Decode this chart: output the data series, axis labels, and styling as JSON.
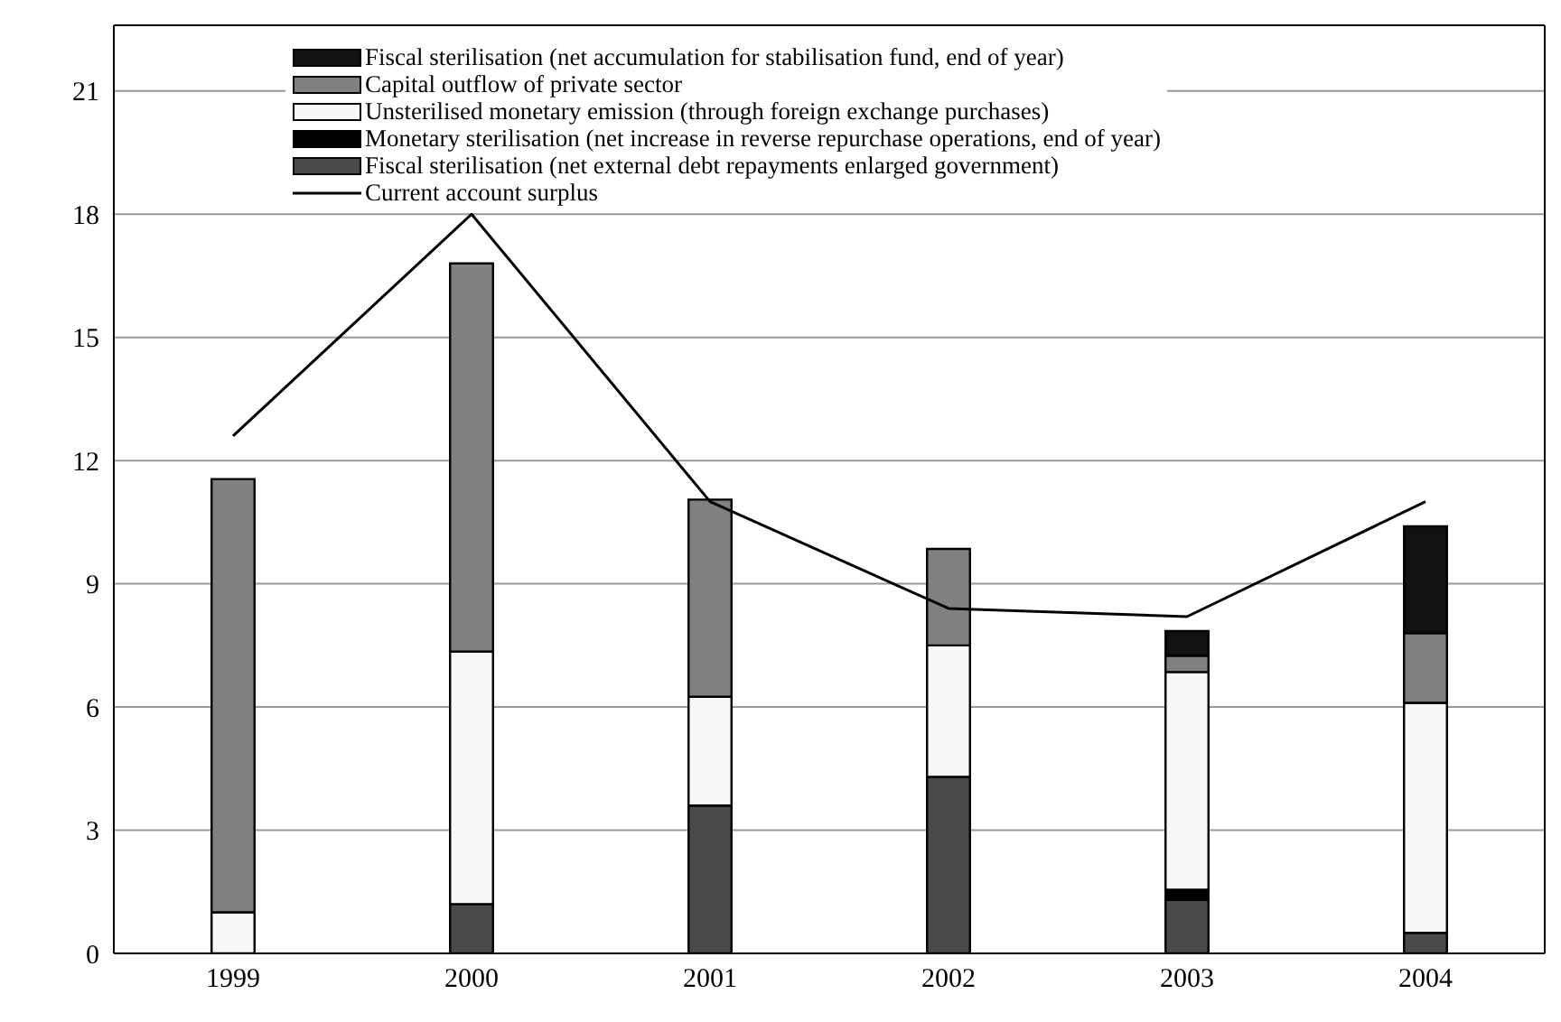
{
  "chart_data": {
    "type": "bar",
    "stacked": true,
    "categories": [
      "1999",
      "2000",
      "2001",
      "2002",
      "2003",
      "2004"
    ],
    "series": [
      {
        "name": "Fiscal sterilisation (net external debt repayments enlarged government)",
        "color": "#4a4a4a",
        "values": [
          null,
          1.2,
          3.6,
          4.3,
          1.3,
          0.5
        ]
      },
      {
        "name": "Monetary sterilisation (net increase in reverse repurchase operations, end of year)",
        "color": "#000000",
        "values": [
          null,
          null,
          null,
          null,
          0.25,
          null
        ]
      },
      {
        "name": "Unsterilised monetary emission (through foreign exchange purchases)",
        "color": "#f8f8f8",
        "values": [
          1.0,
          6.15,
          2.65,
          3.2,
          5.3,
          5.6
        ]
      },
      {
        "name": "Capital outflow of private sector",
        "color": "#808080",
        "values": [
          10.55,
          9.45,
          4.8,
          2.35,
          0.4,
          1.7
        ]
      },
      {
        "name": "Fiscal sterilisation (net accumulation for stabilisation fund, end of year)",
        "color": "#111111",
        "values": [
          null,
          null,
          null,
          null,
          0.6,
          2.6
        ]
      },
      {
        "name": "Current account surplus",
        "type": "line",
        "color": "#000000",
        "values": [
          12.6,
          18.0,
          11.0,
          8.4,
          8.2,
          11.0
        ]
      }
    ],
    "ylim": [
      0,
      22.6
    ],
    "yticks": [
      0,
      3,
      6,
      9,
      12,
      15,
      18,
      21
    ],
    "grid": "y",
    "legend": "top left",
    "marker": "none",
    "line_style": "solid"
  }
}
